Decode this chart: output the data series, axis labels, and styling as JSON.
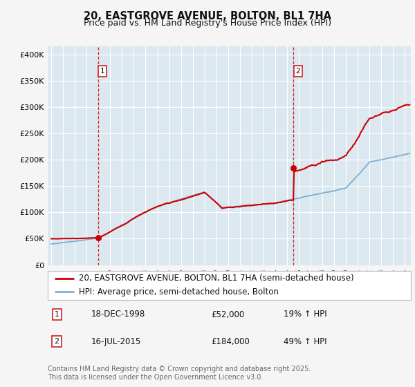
{
  "title_line1": "20, EASTGROVE AVENUE, BOLTON, BL1 7HA",
  "title_line2": "Price paid vs. HM Land Registry's House Price Index (HPI)",
  "ylabel_ticks": [
    "£0",
    "£50K",
    "£100K",
    "£150K",
    "£200K",
    "£250K",
    "£300K",
    "£350K",
    "£400K"
  ],
  "ytick_values": [
    0,
    50000,
    100000,
    150000,
    200000,
    250000,
    300000,
    350000,
    400000
  ],
  "ylim": [
    0,
    415000
  ],
  "xlim_start": 1994.7,
  "xlim_end": 2025.5,
  "xtick_years": [
    1995,
    1996,
    1997,
    1998,
    1999,
    2000,
    2001,
    2002,
    2003,
    2004,
    2005,
    2006,
    2007,
    2008,
    2009,
    2010,
    2011,
    2012,
    2013,
    2014,
    2015,
    2016,
    2017,
    2018,
    2019,
    2020,
    2021,
    2022,
    2023,
    2024,
    2025
  ],
  "purchase1_x": 1998.96,
  "purchase1_y": 52000,
  "purchase2_x": 2015.54,
  "purchase2_y": 184000,
  "vline1_x": 1998.96,
  "vline2_x": 2015.54,
  "red_color": "#cc0000",
  "blue_color": "#7aafd4",
  "vline_color": "#cc0000",
  "background_color": "#f5f5f5",
  "plot_bg_color": "#dce8f0",
  "grid_color": "#ffffff",
  "legend_line1": "20, EASTGROVE AVENUE, BOLTON, BL1 7HA (semi-detached house)",
  "legend_line2": "HPI: Average price, semi-detached house, Bolton",
  "table_rows": [
    [
      "1",
      "18-DEC-1998",
      "£52,000",
      "19% ↑ HPI"
    ],
    [
      "2",
      "16-JUL-2015",
      "£184,000",
      "49% ↑ HPI"
    ]
  ],
  "footer_text": "Contains HM Land Registry data © Crown copyright and database right 2025.\nThis data is licensed under the Open Government Licence v3.0.",
  "title_fontsize": 10.5,
  "subtitle_fontsize": 9,
  "tick_fontsize": 8,
  "legend_fontsize": 8.5,
  "table_fontsize": 8.5,
  "footer_fontsize": 7
}
